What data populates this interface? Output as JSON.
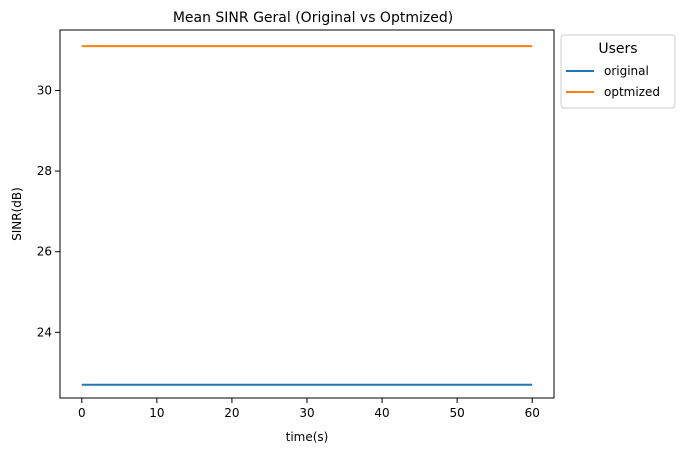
{
  "chart_data": {
    "type": "line",
    "title": "Mean SINR Geral (Original vs Optmized)",
    "xlabel": "time(s)",
    "ylabel": "SINR(dB)",
    "xlim": [
      -2.9,
      62.9
    ],
    "ylim": [
      22.37,
      31.5
    ],
    "xticks": [
      0,
      10,
      20,
      30,
      40,
      50,
      60
    ],
    "yticks": [
      24,
      26,
      28,
      30
    ],
    "grid": false,
    "legend": {
      "title": "Users",
      "placement": "outside-top-right"
    },
    "series": [
      {
        "name": "original",
        "color": "#1f77b4",
        "x": [
          0,
          60
        ],
        "y": [
          22.7,
          22.7
        ]
      },
      {
        "name": "optmized",
        "color": "#ff7f0e",
        "x": [
          0,
          60
        ],
        "y": [
          31.1,
          31.1
        ]
      }
    ]
  }
}
